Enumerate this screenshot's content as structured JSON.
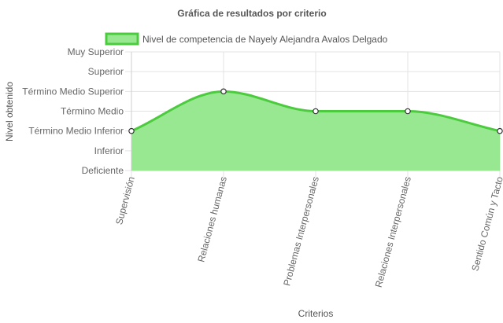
{
  "chart_data": {
    "type": "area",
    "title": "Gráfica de resultados por criterio",
    "xlabel": "Criterios",
    "ylabel": "Nivel obtenido",
    "y_levels": [
      "Deficiente",
      "Inferior",
      "Término Medio Inferior",
      "Término Medio",
      "Término Medio Superior",
      "Superior",
      "Muy Superior"
    ],
    "ylim": [
      0,
      6
    ],
    "categories": [
      "Supervisión",
      "Relaciones humanas",
      "Problemas Interpersonales",
      "Relaciones Interpersonales",
      "Sentido Común y Tacto"
    ],
    "series": [
      {
        "name": "Nivel de competencia de Nayely Alejandra Avalos Delgado",
        "values": [
          2,
          4,
          3,
          3,
          2
        ],
        "line_color": "#4ccb3f",
        "fill_color": "#98e891"
      }
    ],
    "grid": true,
    "legend_position": "top"
  }
}
